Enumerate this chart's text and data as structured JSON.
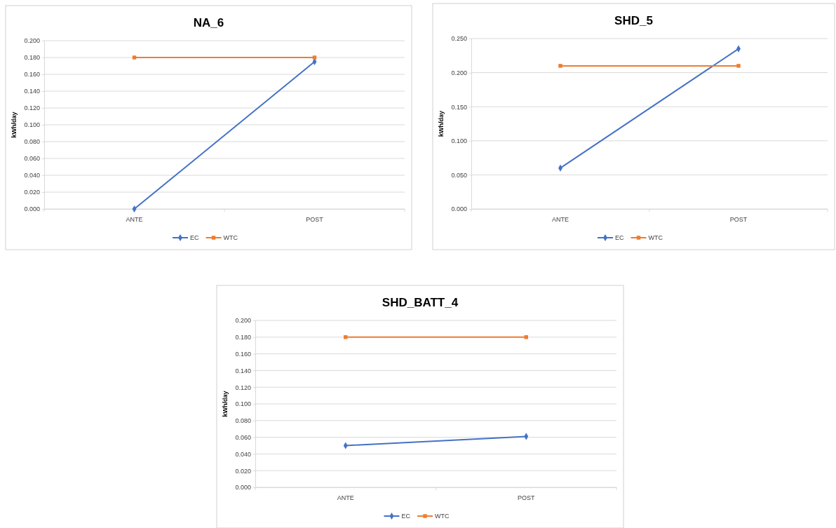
{
  "chart_data": [
    {
      "type": "line",
      "title": "NA_6",
      "ylabel": "kWh/day",
      "categories": [
        "ANTE",
        "POST"
      ],
      "ylim": [
        0,
        0.2
      ],
      "yticks": [
        {
          "value": 0,
          "label": "0.000"
        },
        {
          "value": 0.02,
          "label": "0.020"
        },
        {
          "value": 0.04,
          "label": "0.040"
        },
        {
          "value": 0.06,
          "label": "0.060"
        },
        {
          "value": 0.08,
          "label": "0.080"
        },
        {
          "value": 0.1,
          "label": "0.100"
        },
        {
          "value": 0.12,
          "label": "0.120"
        },
        {
          "value": 0.14,
          "label": "0.140"
        },
        {
          "value": 0.16,
          "label": "0.160"
        },
        {
          "value": 0.18,
          "label": "0.180"
        },
        {
          "value": 0.2,
          "label": "0.200"
        }
      ],
      "grid": "y",
      "legend": "bottom",
      "series": [
        {
          "name": "EC",
          "color": "#4472c4",
          "marker": "diamond",
          "values": [
            0,
            0.175
          ]
        },
        {
          "name": "WTC",
          "color": "#ed7d31",
          "marker": "square",
          "values": [
            0.18,
            0.18
          ]
        }
      ]
    },
    {
      "type": "line",
      "title": "SHD_5",
      "ylabel": "kWh/day",
      "categories": [
        "ANTE",
        "POST"
      ],
      "ylim": [
        0,
        0.25
      ],
      "yticks": [
        {
          "value": 0,
          "label": "0.000"
        },
        {
          "value": 0.05,
          "label": "0.050"
        },
        {
          "value": 0.1,
          "label": "0.100"
        },
        {
          "value": 0.15,
          "label": "0.150"
        },
        {
          "value": 0.2,
          "label": "0.200"
        },
        {
          "value": 0.25,
          "label": "0.250"
        }
      ],
      "grid": "y",
      "legend": "bottom",
      "series": [
        {
          "name": "EC",
          "color": "#4472c4",
          "marker": "diamond",
          "values": [
            0.06,
            0.235
          ]
        },
        {
          "name": "WTC",
          "color": "#ed7d31",
          "marker": "square",
          "values": [
            0.21,
            0.21
          ]
        }
      ]
    },
    {
      "type": "line",
      "title": "SHD_BATT_4",
      "ylabel": "kWh/day",
      "categories": [
        "ANTE",
        "POST"
      ],
      "ylim": [
        0,
        0.2
      ],
      "yticks": [
        {
          "value": 0,
          "label": "0.000"
        },
        {
          "value": 0.02,
          "label": "0.020"
        },
        {
          "value": 0.04,
          "label": "0.040"
        },
        {
          "value": 0.06,
          "label": "0.060"
        },
        {
          "value": 0.08,
          "label": "0.080"
        },
        {
          "value": 0.1,
          "label": "0.100"
        },
        {
          "value": 0.12,
          "label": "0.120"
        },
        {
          "value": 0.14,
          "label": "0.140"
        },
        {
          "value": 0.16,
          "label": "0.160"
        },
        {
          "value": 0.18,
          "label": "0.180"
        },
        {
          "value": 0.2,
          "label": "0.200"
        }
      ],
      "grid": "y",
      "legend": "bottom",
      "series": [
        {
          "name": "EC",
          "color": "#4472c4",
          "marker": "diamond",
          "values": [
            0.05,
            0.061
          ]
        },
        {
          "name": "WTC",
          "color": "#ed7d31",
          "marker": "square",
          "values": [
            0.18,
            0.18
          ]
        }
      ]
    }
  ]
}
